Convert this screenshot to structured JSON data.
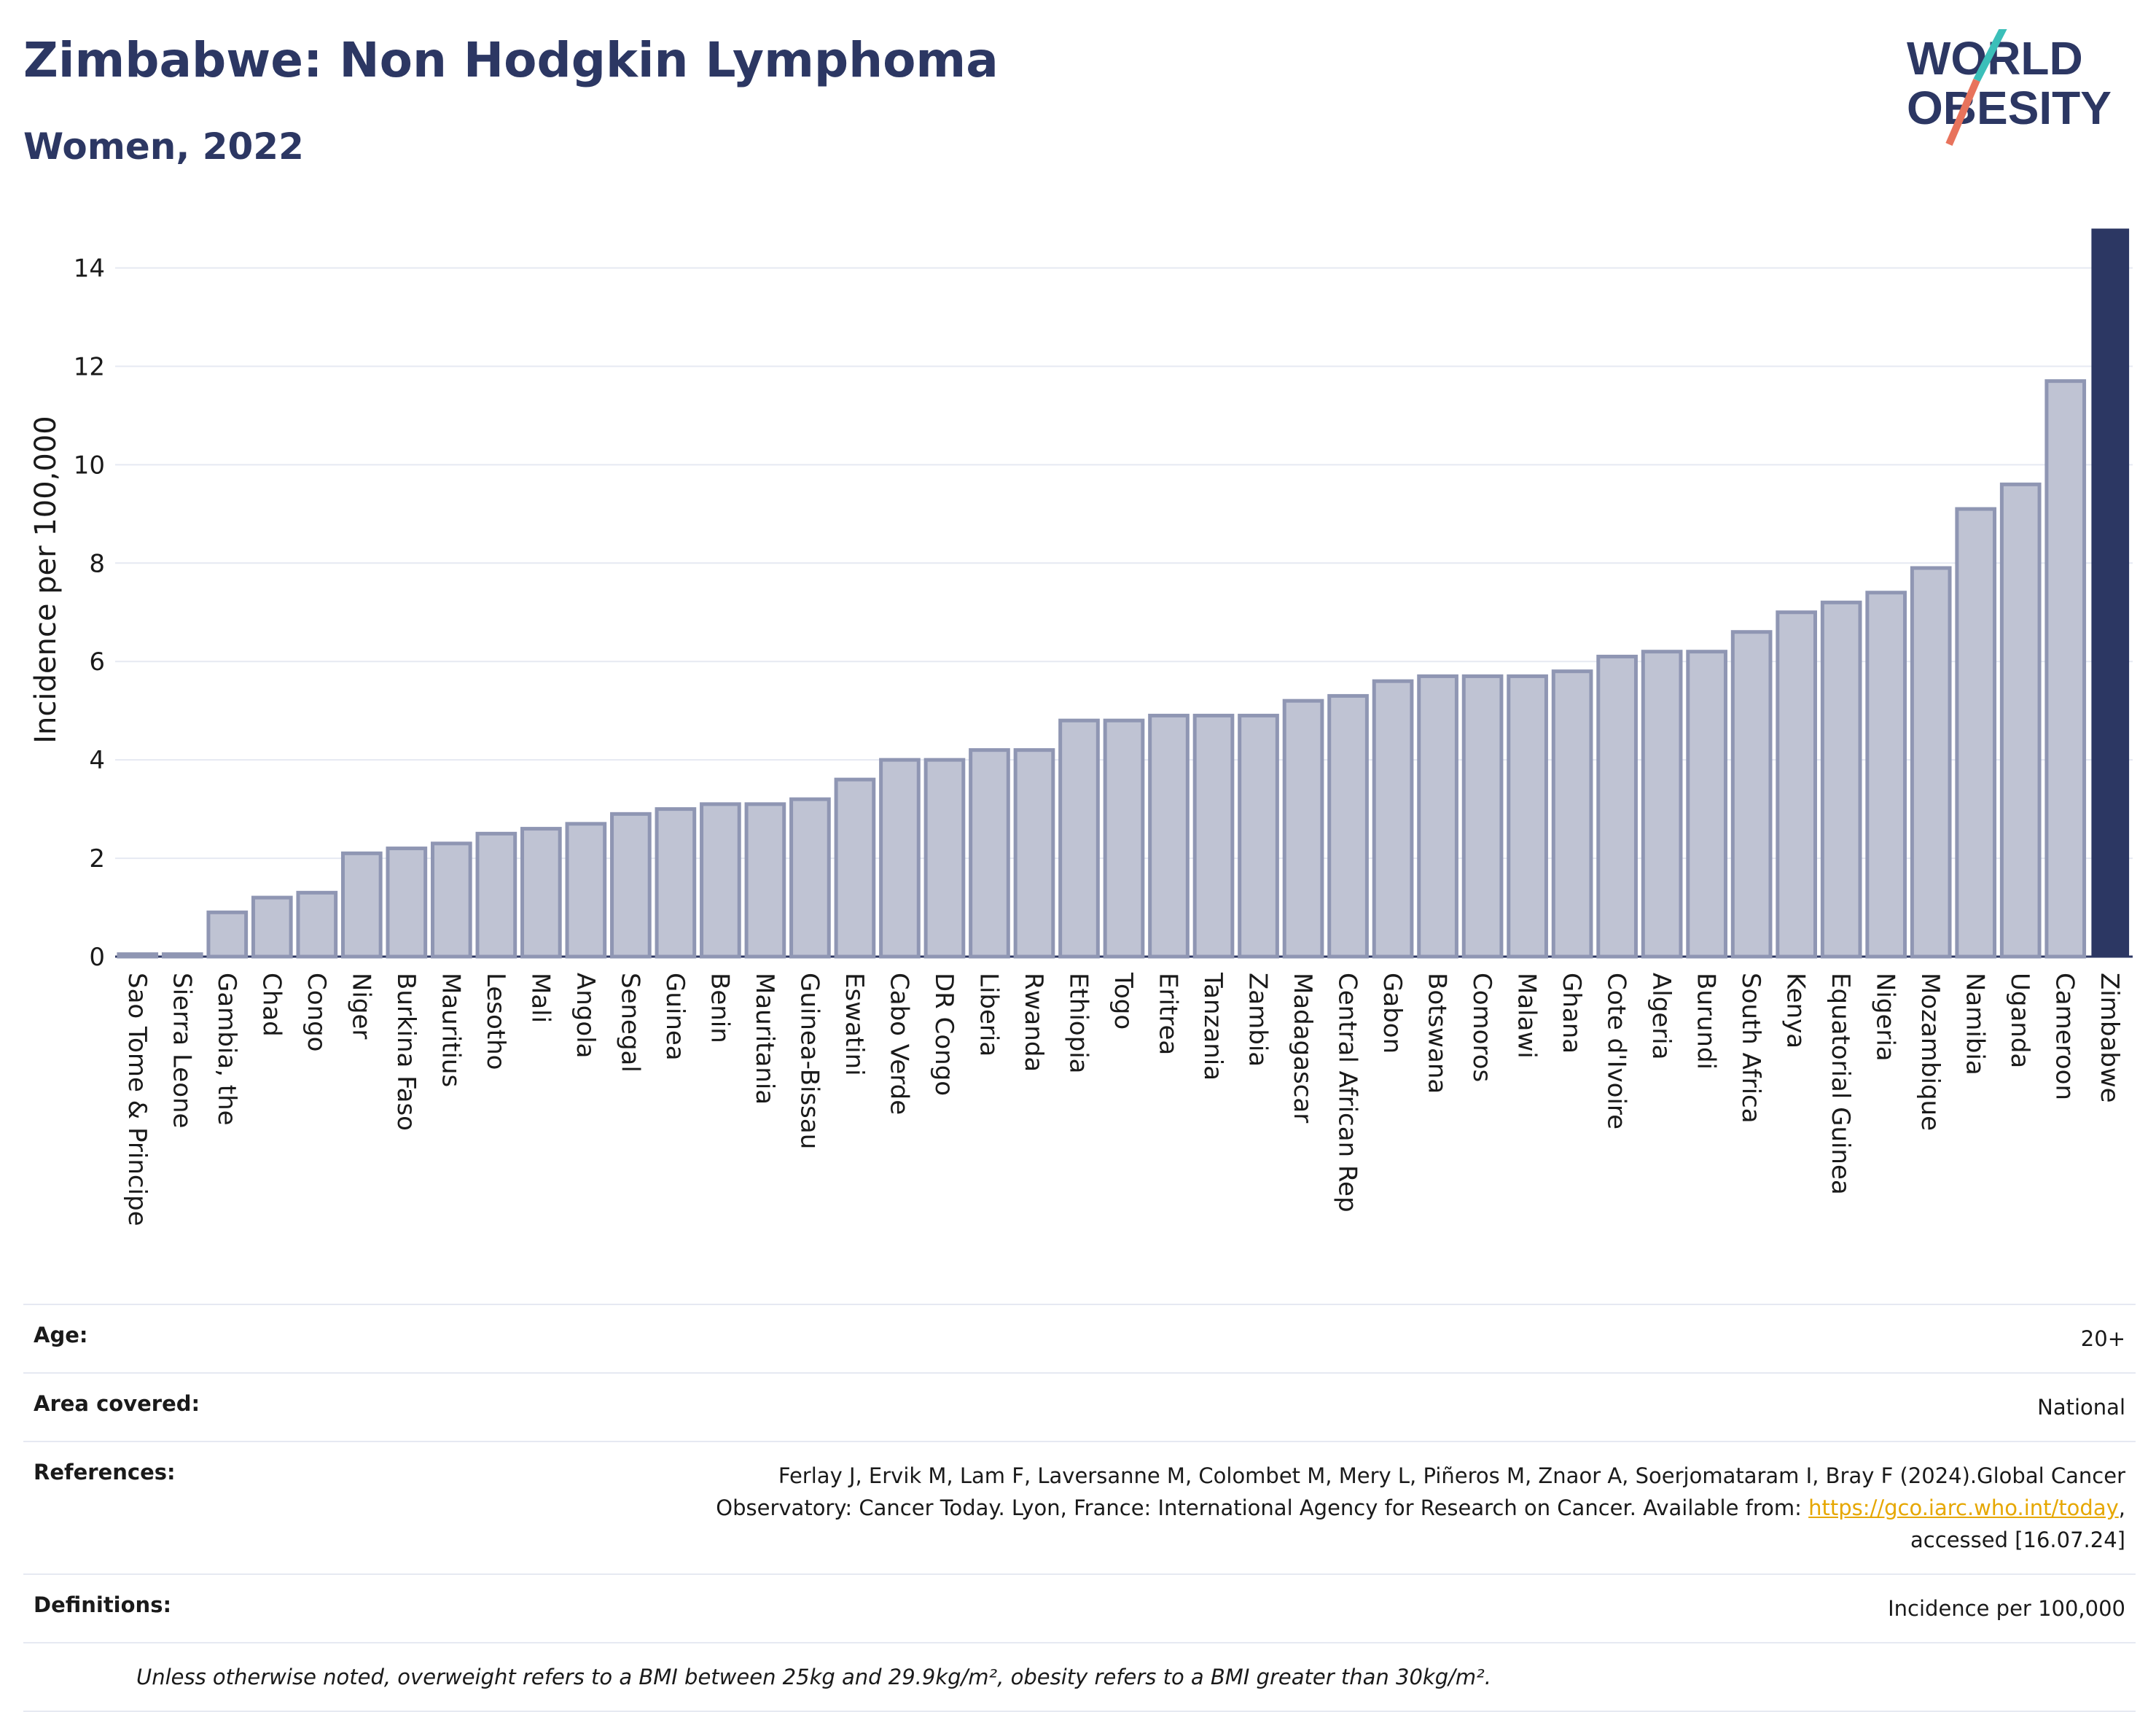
{
  "header": {
    "title": "Zimbabwe: Non Hodgkin Lymphoma",
    "subtitle": "Women, 2022"
  },
  "logo": {
    "line1": "WORLD",
    "line2": "OBESITY",
    "accent_colors": [
      "#3bbfb9",
      "#e8735c"
    ],
    "text_color": "#2c3763"
  },
  "colors": {
    "bar_default": "#bfc3d3",
    "bar_default_stroke": "#8f96b3",
    "bar_highlight": "#2c3763",
    "grid": "#e6e9f2"
  },
  "chart_data": {
    "type": "bar",
    "ylabel": "Incidence per 100,000",
    "ylim": [
      0,
      15
    ],
    "yticks": [
      0,
      2,
      4,
      6,
      8,
      10,
      12,
      14
    ],
    "grid": true,
    "highlight": "Zimbabwe",
    "categories": [
      "Sao Tome & Principe",
      "Sierra Leone",
      "Gambia, the",
      "Chad",
      "Congo",
      "Niger",
      "Burkina Faso",
      "Mauritius",
      "Lesotho",
      "Mali",
      "Angola",
      "Senegal",
      "Guinea",
      "Benin",
      "Mauritania",
      "Guinea-Bissau",
      "Eswatini",
      "Cabo Verde",
      "DR Congo",
      "Liberia",
      "Rwanda",
      "Ethiopia",
      "Togo",
      "Eritrea",
      "Tanzania",
      "Zambia",
      "Madagascar",
      "Central African Rep",
      "Gabon",
      "Botswana",
      "Comoros",
      "Malawi",
      "Ghana",
      "Cote d'Ivoire",
      "Algeria",
      "Burundi",
      "South Africa",
      "Kenya",
      "Equatorial Guinea",
      "Nigeria",
      "Mozambique",
      "Namibia",
      "Uganda",
      "Cameroon",
      "Zimbabwe"
    ],
    "values": [
      0.05,
      0.05,
      0.9,
      1.2,
      1.3,
      2.1,
      2.2,
      2.3,
      2.5,
      2.6,
      2.7,
      2.9,
      3.0,
      3.1,
      3.1,
      3.2,
      3.6,
      4.0,
      4.0,
      4.2,
      4.2,
      4.8,
      4.8,
      4.9,
      4.9,
      4.9,
      5.2,
      5.3,
      5.6,
      5.7,
      5.7,
      5.7,
      5.8,
      6.1,
      6.2,
      6.2,
      6.6,
      7.0,
      7.2,
      7.4,
      7.9,
      9.1,
      9.6,
      11.7,
      14.8
    ]
  },
  "meta": {
    "age_label": "Age:",
    "age_value": "20+",
    "area_label": "Area covered:",
    "area_value": "National",
    "references_label": "References:",
    "references_text_1": "Ferlay J, Ervik M, Lam F, Laversanne M, Colombet M, Mery L, Piñeros M, Znaor A, Soerjomataram I, Bray F (2024).Global Cancer Observatory: Cancer Today. Lyon, France: International Agency for Research on Cancer. Available from: ",
    "references_link": "https://gco.iarc.who.int/today",
    "references_text_2": ", accessed [16.07.24]",
    "definitions_label": "Definitions:",
    "definitions_value": "Incidence per 100,000",
    "footnote": "Unless otherwise noted, overweight refers to a BMI between 25kg and 29.9kg/m², obesity refers to a BMI greater than 30kg/m²."
  }
}
